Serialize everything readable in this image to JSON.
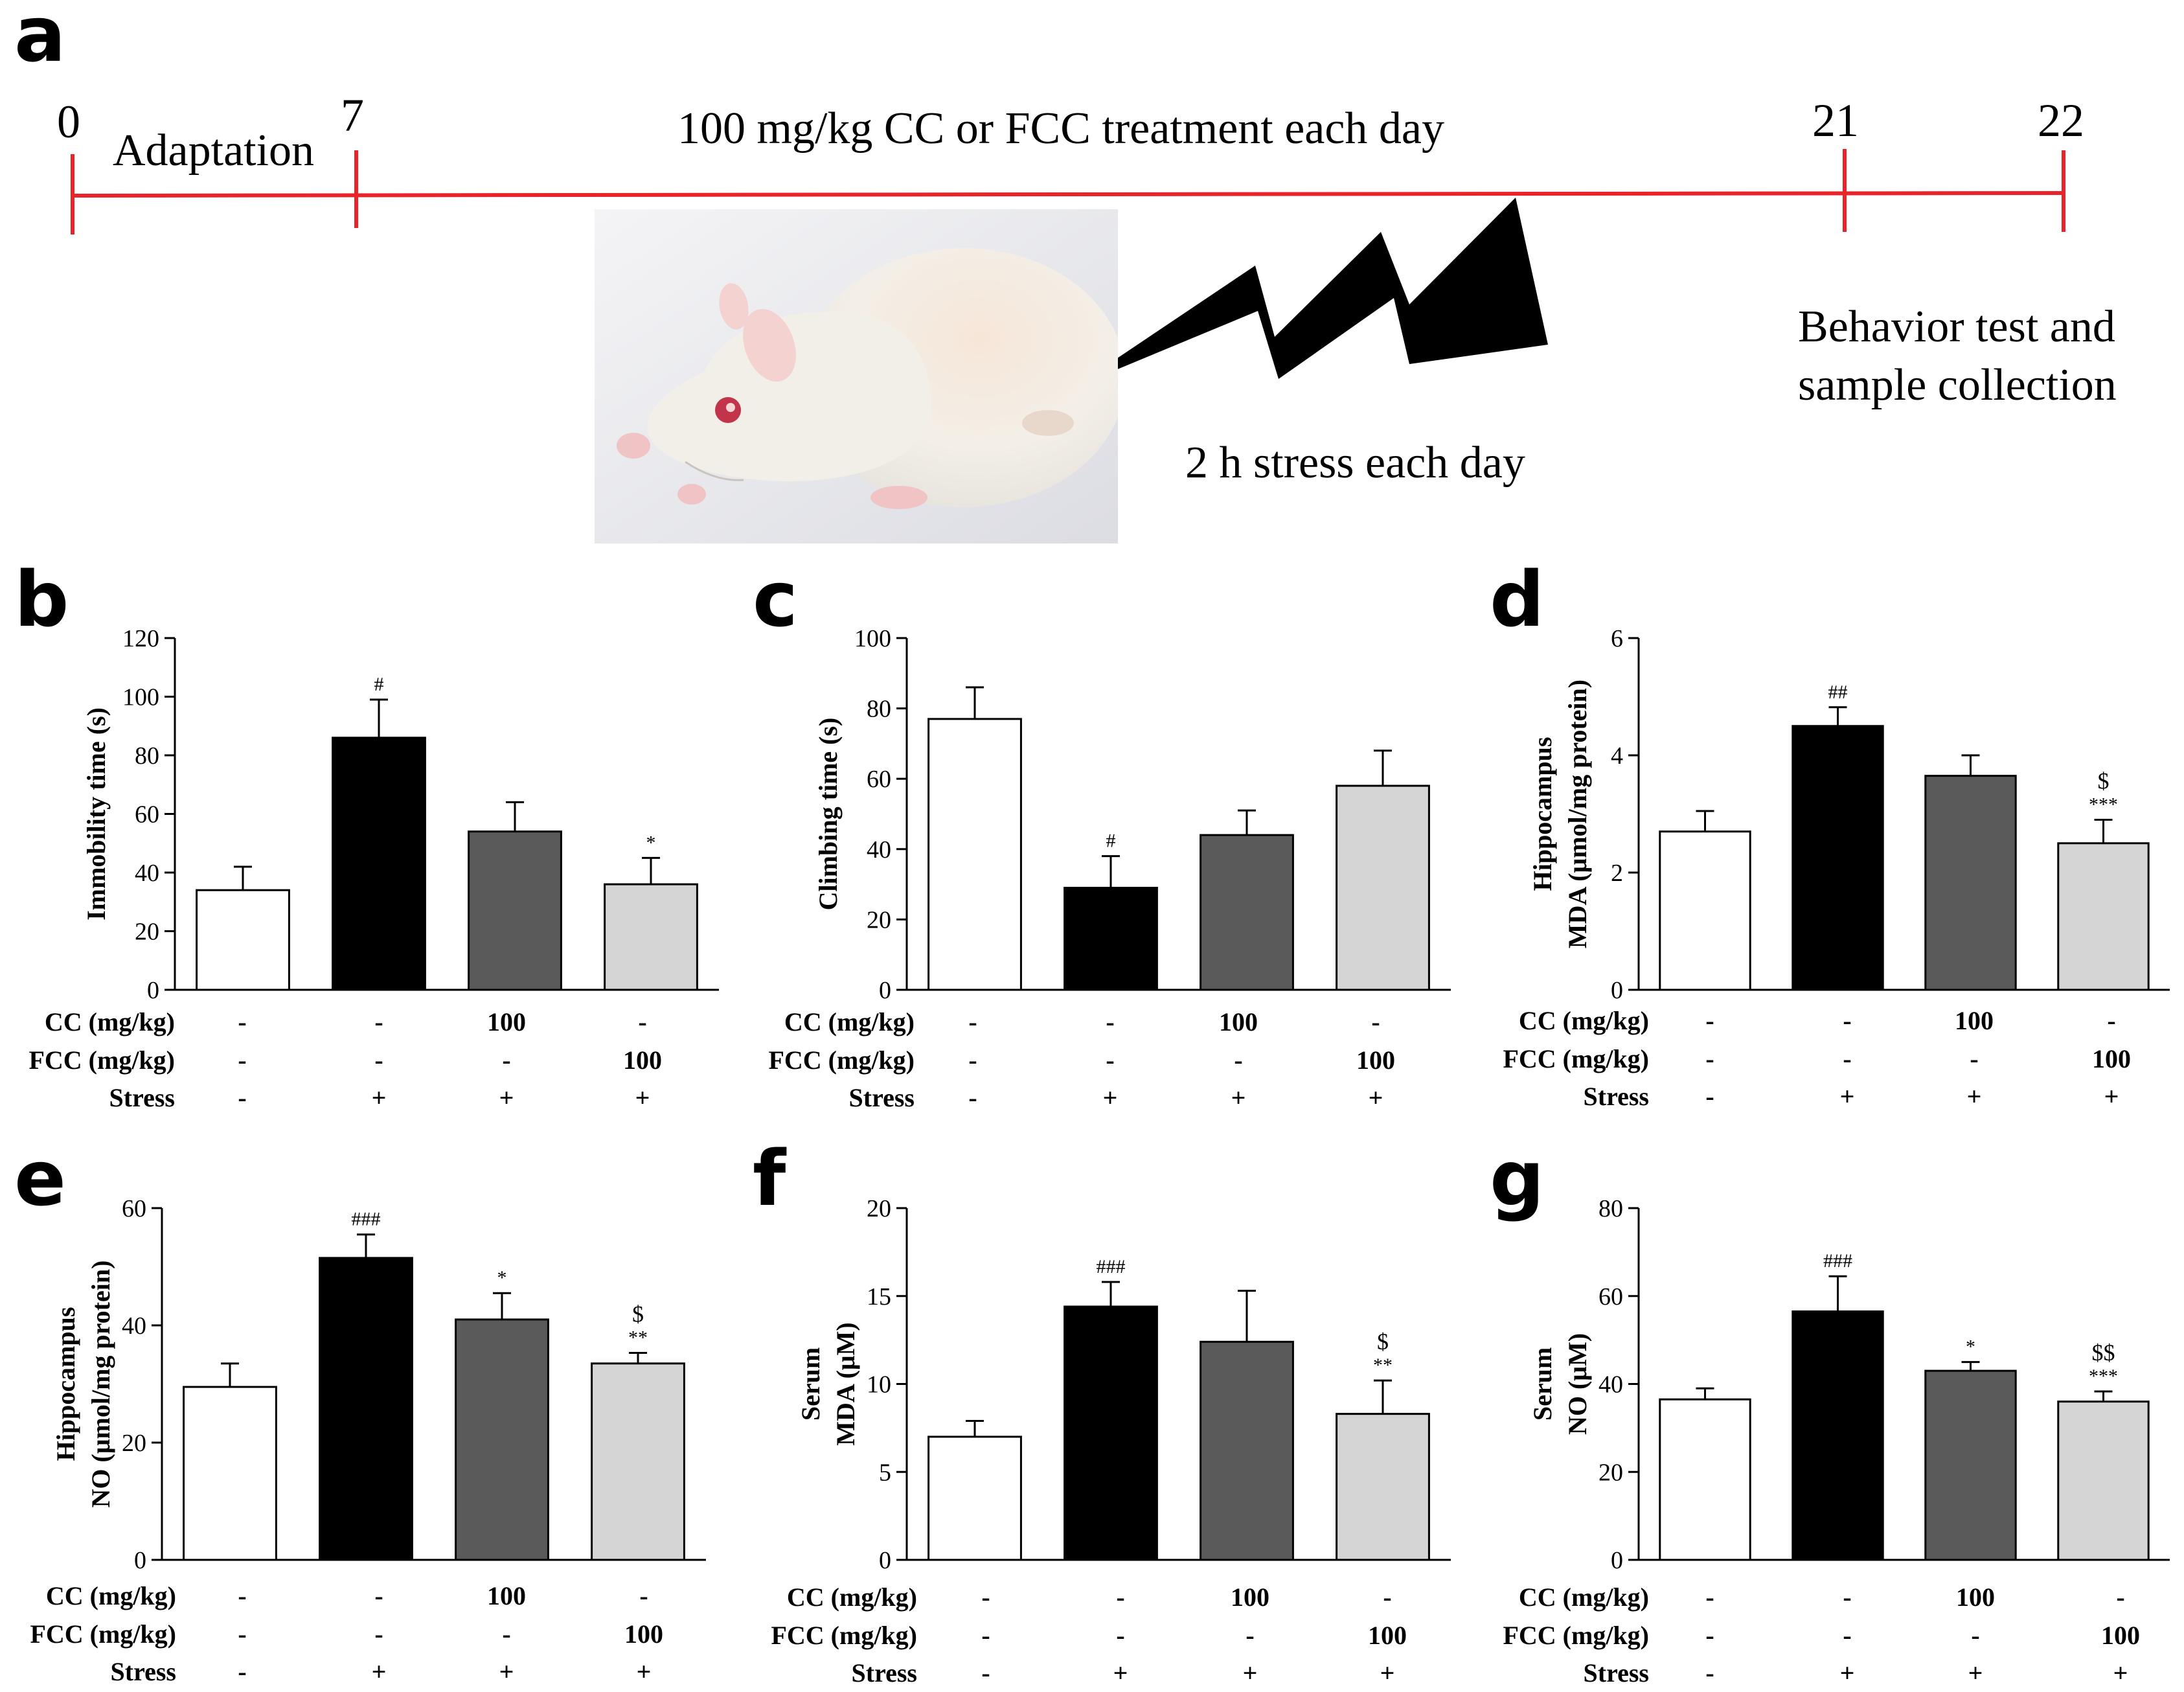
{
  "panel_letters": [
    "a",
    "b",
    "c",
    "d",
    "e",
    "f",
    "g"
  ],
  "timeline": {
    "days": [
      "0",
      "7",
      "21",
      "22"
    ],
    "adaptation": "Adaptation",
    "treatment": "100 mg/kg CC or FCC treatment each day",
    "stress": "2 h stress each day",
    "behavior_line1": "Behavior test and",
    "behavior_line2": "sample collection",
    "line_color": "#e8232a"
  },
  "conditions": {
    "labels": [
      "CC (mg/kg)",
      "FCC (mg/kg)",
      "Stress"
    ],
    "rows": [
      [
        "-",
        "-",
        "100",
        "-"
      ],
      [
        "-",
        "-",
        "-",
        "100"
      ],
      [
        "-",
        "+",
        "+",
        "+"
      ]
    ]
  },
  "bar_colors": [
    "#ffffff",
    "#000000",
    "#5a5a5a",
    "#d5d5d5"
  ],
  "chart_data": [
    {
      "panel": "b",
      "type": "bar",
      "ylabel_lines": [
        "Immobility time (s)"
      ],
      "ylim": [
        0,
        120
      ],
      "yticks": [
        0,
        20,
        40,
        60,
        80,
        100,
        120
      ],
      "values": [
        34,
        86,
        54,
        36
      ],
      "errors": [
        8,
        13,
        10,
        9
      ],
      "annotations": [
        [],
        [
          "#"
        ],
        [],
        [
          "*"
        ]
      ]
    },
    {
      "panel": "c",
      "type": "bar",
      "ylabel_lines": [
        "Climbing time (s)"
      ],
      "ylim": [
        0,
        100
      ],
      "yticks": [
        0,
        20,
        40,
        60,
        80,
        100
      ],
      "values": [
        77,
        29,
        44,
        58
      ],
      "errors": [
        9,
        9,
        7,
        10
      ],
      "annotations": [
        [],
        [
          "#"
        ],
        [],
        []
      ]
    },
    {
      "panel": "d",
      "type": "bar",
      "ylabel_lines": [
        "Hippocampus",
        "MDA (μmol/mg protein)"
      ],
      "ylim": [
        0,
        6
      ],
      "yticks": [
        0,
        2,
        4,
        6
      ],
      "values": [
        2.7,
        4.5,
        3.65,
        2.5
      ],
      "errors": [
        0.35,
        0.32,
        0.35,
        0.4
      ],
      "annotations": [
        [],
        [
          "##"
        ],
        [],
        [
          "$",
          "***"
        ]
      ]
    },
    {
      "panel": "e",
      "type": "bar",
      "ylabel_lines": [
        "Hippocampus",
        "NO (μmol/mg protein)"
      ],
      "ylim": [
        0,
        60
      ],
      "yticks": [
        0,
        20,
        40,
        60
      ],
      "values": [
        29.5,
        51.5,
        41,
        33.5
      ],
      "errors": [
        4,
        4,
        4.5,
        1.8
      ],
      "annotations": [
        [],
        [
          "###"
        ],
        [
          "*"
        ],
        [
          "$",
          "**"
        ]
      ]
    },
    {
      "panel": "f",
      "type": "bar",
      "ylabel_lines": [
        "Serum",
        "MDA (μM)"
      ],
      "ylim": [
        0,
        20
      ],
      "yticks": [
        0,
        5,
        10,
        15,
        20
      ],
      "values": [
        7,
        14.4,
        12.4,
        8.3
      ],
      "errors": [
        0.9,
        1.4,
        2.9,
        1.9
      ],
      "annotations": [
        [],
        [
          "###"
        ],
        [],
        [
          "$",
          "**"
        ]
      ]
    },
    {
      "panel": "g",
      "type": "bar",
      "ylabel_lines": [
        "Serum",
        "NO (μM)"
      ],
      "ylim": [
        0,
        80
      ],
      "yticks": [
        0,
        20,
        40,
        60,
        80
      ],
      "values": [
        36.5,
        56.5,
        43,
        36
      ],
      "errors": [
        2.5,
        8,
        2,
        2.3
      ],
      "annotations": [
        [],
        [
          "###"
        ],
        [
          "*"
        ],
        [
          "$$",
          "***"
        ]
      ]
    }
  ]
}
